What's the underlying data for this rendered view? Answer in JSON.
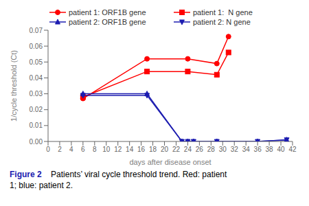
{
  "chart_data": {
    "type": "line",
    "xlabel": "days after disease onset",
    "ylabel": "1/cycle threshold (Ct)",
    "series": [
      {
        "name": "patient 1: ORF1B gene",
        "color": "#FF0000",
        "marker": "circle",
        "x": [
          6,
          17,
          24,
          29,
          31
        ],
        "values": [
          0.027,
          0.052,
          0.052,
          0.049,
          0.066
        ]
      },
      {
        "name": "patient 1:  N gene",
        "color": "#FF0000",
        "marker": "square",
        "x": [
          6,
          17,
          24,
          29,
          31
        ],
        "values": [
          0.028,
          0.044,
          0.044,
          0.042,
          0.056
        ]
      },
      {
        "name": "patient 2: ORF1B gene",
        "color": "#1C1CB0",
        "marker": "triangle-up",
        "x": [
          6,
          17,
          23,
          24,
          25,
          29,
          36,
          41
        ],
        "values": [
          0.03,
          0.03,
          0.0,
          0.0,
          0.0,
          0.0,
          0.0,
          0.001
        ]
      },
      {
        "name": "patient 2: N gene",
        "color": "#1C1CB0",
        "marker": "triangle-down",
        "x": [
          6,
          17,
          23,
          24,
          25,
          29,
          36,
          41
        ],
        "values": [
          0.029,
          0.029,
          0.0,
          0.0,
          0.0,
          0.0,
          0.0,
          0.001
        ]
      }
    ],
    "xlim": [
      0,
      42
    ],
    "ylim": [
      0.0,
      0.07
    ],
    "xticks": [
      0,
      2,
      4,
      6,
      8,
      10,
      12,
      14,
      16,
      18,
      20,
      22,
      24,
      26,
      28,
      30,
      32,
      34,
      36,
      38,
      40,
      42
    ],
    "yticks": [
      {
        "value": 0,
        "label": "0.00"
      },
      {
        "value": 0.01,
        "label": "0.01"
      },
      {
        "value": 0.02,
        "label": "0.02"
      },
      {
        "value": 0.03,
        "label": "0.03"
      },
      {
        "value": 0.04,
        "label": "0.04"
      },
      {
        "value": 0.05,
        "label": "0.05"
      },
      {
        "value": 0.06,
        "label": "0.06"
      },
      {
        "value": 0.07,
        "label": "0.07"
      }
    ],
    "grid": false,
    "legend": "top",
    "annotations": [
      {
        "text": "Figure 2",
        "color": "#1C1CB0"
      },
      {
        "text": "    Patients’ viral cycle threshold trend. Red: patient\n1; blue: patient 2.",
        "color": "#000000"
      }
    ]
  }
}
